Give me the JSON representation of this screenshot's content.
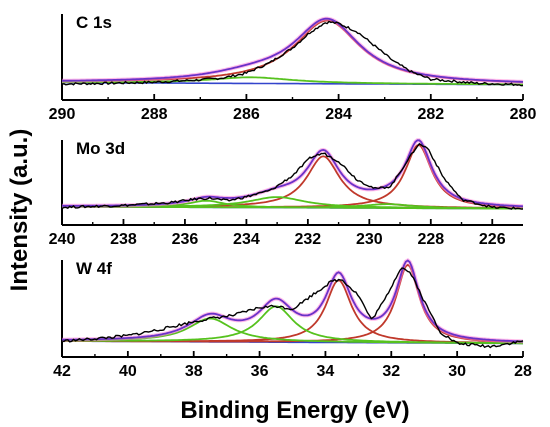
{
  "chart_data": {
    "type": "line",
    "xlabel": "Binding Energy (eV)",
    "ylabel": "Intensity (a.u.)",
    "colors": {
      "raw": "#000000",
      "envelope": "#6a32c8",
      "background": "#ff7fd8",
      "peak_main": "#c0392b",
      "peak_secondary": "#56c21e",
      "baseline": "#3344cc"
    },
    "panels": [
      {
        "label": "C 1s",
        "xlim": [
          290,
          280
        ],
        "x_reversed": true,
        "xticks": [
          290,
          288,
          286,
          284,
          282,
          280
        ],
        "x_tick_labels": [
          "290",
          "288",
          "286",
          "284",
          "282",
          "280"
        ],
        "raw_points": [
          [
            290,
            0.03
          ],
          [
            289,
            0.04
          ],
          [
            288,
            0.055
          ],
          [
            287,
            0.09
          ],
          [
            286.5,
            0.12
          ],
          [
            286,
            0.19
          ],
          [
            285.5,
            0.34
          ],
          [
            285,
            0.56
          ],
          [
            284.6,
            0.8
          ],
          [
            284.3,
            0.93
          ],
          [
            284.2,
            0.94
          ],
          [
            284,
            0.92
          ],
          [
            283.6,
            0.8
          ],
          [
            283.2,
            0.58
          ],
          [
            282.8,
            0.36
          ],
          [
            282.4,
            0.2
          ],
          [
            282,
            0.1
          ],
          [
            281,
            0.04
          ],
          [
            280,
            0.02
          ]
        ],
        "peaks": [
          {
            "center": 284.25,
            "amplitude": 0.93,
            "fwhm": 1.75,
            "color_key": "peak_main"
          },
          {
            "center": 285.9,
            "amplitude": 0.09,
            "fwhm": 2.2,
            "color_key": "peak_secondary"
          }
        ]
      },
      {
        "label": "Mo 3d",
        "xlim": [
          240,
          225
        ],
        "x_reversed": true,
        "xticks": [
          240,
          238,
          236,
          234,
          232,
          230,
          228,
          226
        ],
        "x_tick_labels": [
          "240",
          "238",
          "236",
          "234",
          "232",
          "230",
          "228",
          "226"
        ],
        "raw_points": [
          [
            240,
            0.04
          ],
          [
            238,
            0.07
          ],
          [
            236.5,
            0.11
          ],
          [
            235.6,
            0.17
          ],
          [
            235.2,
            0.18
          ],
          [
            234.6,
            0.14
          ],
          [
            234,
            0.2
          ],
          [
            233.2,
            0.3
          ],
          [
            232.5,
            0.52
          ],
          [
            231.9,
            0.8
          ],
          [
            231.5,
            0.86
          ],
          [
            231,
            0.74
          ],
          [
            230.4,
            0.46
          ],
          [
            229.8,
            0.32
          ],
          [
            229.3,
            0.36
          ],
          [
            228.8,
            0.72
          ],
          [
            228.4,
            1.0
          ],
          [
            228.1,
            0.94
          ],
          [
            227.6,
            0.5
          ],
          [
            227,
            0.16
          ],
          [
            226,
            0.04
          ],
          [
            225,
            0.02
          ]
        ],
        "peaks": [
          {
            "center": 231.5,
            "amplitude": 0.78,
            "fwhm": 1.3,
            "color_key": "peak_main"
          },
          {
            "center": 228.4,
            "amplitude": 0.96,
            "fwhm": 1.05,
            "color_key": "peak_main"
          },
          {
            "center": 235.3,
            "amplitude": 0.1,
            "fwhm": 1.4,
            "color_key": "peak_secondary"
          },
          {
            "center": 233.0,
            "amplitude": 0.16,
            "fwhm": 2.2,
            "color_key": "peak_secondary"
          },
          {
            "center": 229.4,
            "amplitude": 0.06,
            "fwhm": 2.0,
            "color_key": "peak_secondary"
          }
        ]
      },
      {
        "label": "W 4f",
        "xlim": [
          42,
          28
        ],
        "x_reversed": true,
        "xticks": [
          42,
          40,
          38,
          36,
          34,
          32,
          30,
          28
        ],
        "x_tick_labels": [
          "42",
          "40",
          "38",
          "36",
          "34",
          "32",
          "30",
          "28"
        ],
        "raw_points": [
          [
            42,
            0.05
          ],
          [
            41,
            0.08
          ],
          [
            40,
            0.12
          ],
          [
            39,
            0.2
          ],
          [
            38.2,
            0.28
          ],
          [
            37.5,
            0.34
          ],
          [
            36.8,
            0.38
          ],
          [
            36,
            0.48
          ],
          [
            35.5,
            0.5
          ],
          [
            35,
            0.46
          ],
          [
            34.4,
            0.64
          ],
          [
            33.8,
            0.82
          ],
          [
            33.5,
            0.84
          ],
          [
            33,
            0.64
          ],
          [
            32.6,
            0.32
          ],
          [
            32.2,
            0.58
          ],
          [
            31.7,
            1.0
          ],
          [
            31.4,
            0.92
          ],
          [
            31,
            0.56
          ],
          [
            30.5,
            0.16
          ],
          [
            30,
            0.02
          ],
          [
            29,
            -0.02
          ],
          [
            28,
            0.05
          ]
        ],
        "peaks": [
          {
            "center": 33.6,
            "amplitude": 0.8,
            "fwhm": 0.95,
            "color_key": "peak_main"
          },
          {
            "center": 31.5,
            "amplitude": 1.0,
            "fwhm": 0.85,
            "color_key": "peak_main"
          },
          {
            "center": 37.5,
            "amplitude": 0.3,
            "fwhm": 1.6,
            "color_key": "peak_secondary"
          },
          {
            "center": 35.5,
            "amplitude": 0.46,
            "fwhm": 1.3,
            "color_key": "peak_secondary"
          }
        ]
      }
    ]
  }
}
